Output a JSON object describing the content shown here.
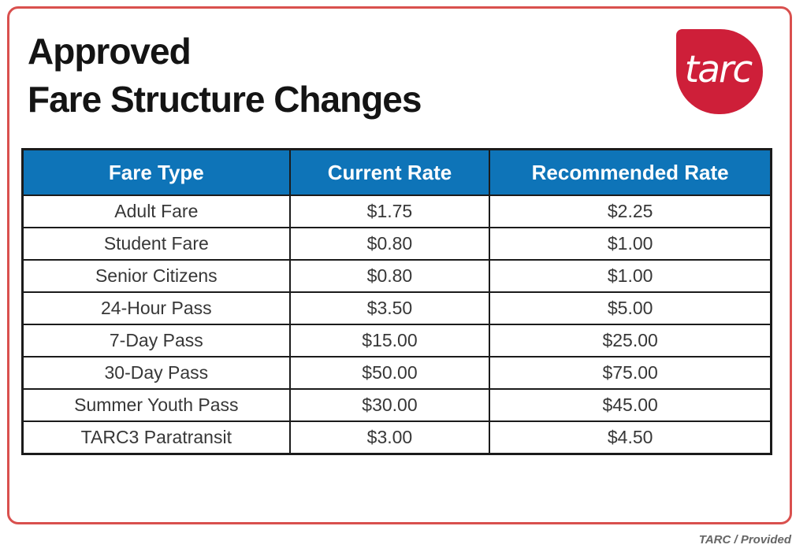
{
  "title": {
    "line1": "Approved",
    "line2": "Fare Structure Changes"
  },
  "logo": {
    "text": "tarc"
  },
  "caption": "TARC  /  Provided",
  "chart_data": {
    "type": "table",
    "title": "Approved Fare Structure Changes",
    "columns": [
      "Fare Type",
      "Current Rate",
      "Recommended Rate"
    ],
    "rows": [
      [
        "Adult Fare",
        "$1.75",
        "$2.25"
      ],
      [
        "Student Fare",
        "$0.80",
        "$1.00"
      ],
      [
        "Senior Citizens",
        "$0.80",
        "$1.00"
      ],
      [
        "24-Hour Pass",
        "$3.50",
        "$5.00"
      ],
      [
        "7-Day Pass",
        "$15.00",
        "$25.00"
      ],
      [
        "30-Day Pass",
        "$50.00",
        "$75.00"
      ],
      [
        "Summer Youth Pass",
        "$30.00",
        "$45.00"
      ],
      [
        "TARC3 Paratransit",
        "$3.00",
        "$4.50"
      ]
    ],
    "source": "TARC / Provided"
  },
  "colors": {
    "header_blue": "#0e74b8",
    "logo_red": "#ce1f39",
    "card_border_red": "#d9504e",
    "table_border": "#1b1b1b",
    "cell_text": "#373737",
    "title_text": "#141414",
    "caption_gray": "#666666"
  }
}
